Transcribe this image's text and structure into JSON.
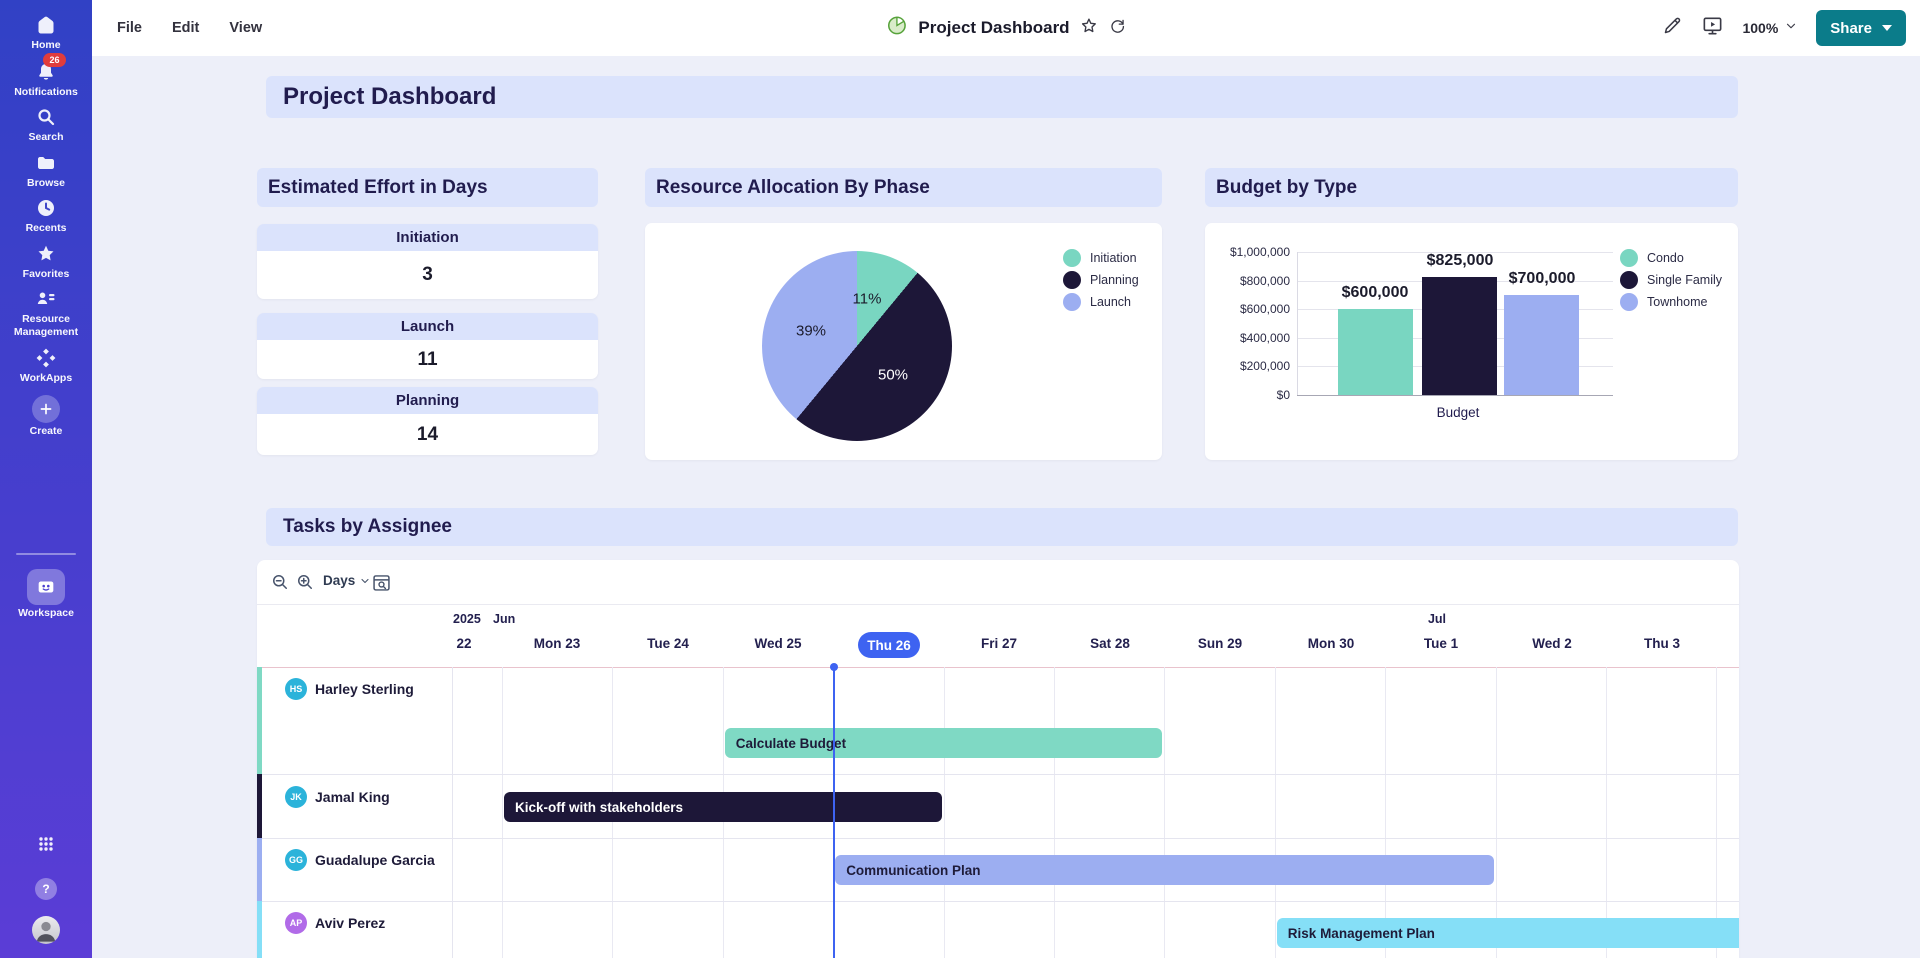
{
  "colors": {
    "accent_blue": "#3E63F1",
    "banner_bg": "#DBE3FC",
    "page_bg": "#EDEFF9",
    "text_dark": "#211C4E",
    "share_button_teal": "#0B7C8A",
    "sidebar_gradient_top": "#3141C5",
    "sidebar_gradient_bottom": "#5B3DD6",
    "notification_badge_red": "#E03C3C"
  },
  "sidebar": {
    "items": [
      {
        "label": "Home"
      },
      {
        "label": "Notifications",
        "badge": "26"
      },
      {
        "label": "Search"
      },
      {
        "label": "Browse"
      },
      {
        "label": "Recents"
      },
      {
        "label": "Favorites"
      },
      {
        "label": "Resource Management"
      },
      {
        "label": "WorkApps"
      }
    ],
    "create_label": "Create",
    "workspace_label": "Workspace"
  },
  "topbar": {
    "menus": [
      "File",
      "Edit",
      "View"
    ],
    "title": "Project Dashboard",
    "zoom_level": "100%",
    "share_label": "Share"
  },
  "page_title": "Project Dashboard",
  "effort_widget": {
    "title": "Estimated Effort in Days",
    "metrics": [
      {
        "label": "Initiation",
        "value": "3"
      },
      {
        "label": "Launch",
        "value": "11"
      },
      {
        "label": "Planning",
        "value": "14"
      }
    ]
  },
  "chart_data": [
    {
      "type": "pie",
      "title": "Resource Allocation By Phase",
      "labels": [
        "Initiation",
        "Planning",
        "Launch"
      ],
      "values": [
        11,
        50,
        39
      ],
      "slice_labels": [
        "11%",
        "50%",
        "39%"
      ],
      "colors": [
        "#79D6C1",
        "#1D1738",
        "#9CAEF1"
      ],
      "legend_position": "right",
      "start_angle_deg": 0,
      "direction": "clockwise"
    },
    {
      "type": "bar",
      "title": "Budget by Type",
      "categories": [
        "Condo",
        "Single Family",
        "Townhome"
      ],
      "values": [
        600000,
        825000,
        700000
      ],
      "value_labels": [
        "$600,000",
        "$825,000",
        "$700,000"
      ],
      "colors": [
        "#79D6C1",
        "#1D1738",
        "#9CAEF1"
      ],
      "xlabel": "Budget",
      "ylabel": "",
      "ylim": [
        0,
        1000000
      ],
      "ytick_labels": [
        "$0",
        "$200,000",
        "$400,000",
        "$600,000",
        "$800,000",
        "$1,000,000"
      ],
      "legend_position": "right",
      "grid": true
    }
  ],
  "gantt": {
    "title": "Tasks by Assignee",
    "toolbar": {
      "scale_label": "Days"
    },
    "timeline": {
      "year": "2025",
      "month_labels": [
        {
          "label": "Jun"
        },
        {
          "label": "Jul"
        }
      ],
      "days": [
        "22",
        "Mon 23",
        "Tue 24",
        "Wed 25",
        "Thu 26",
        "Fri 27",
        "Sat 28",
        "Sun 29",
        "Mon 30",
        "Tue 1",
        "Wed 2",
        "Thu 3"
      ],
      "today": "Thu 26",
      "today_index": 4
    },
    "rows": [
      {
        "name": "Harley Sterling",
        "initials": "HS",
        "avatar_color": "#2BB3DA",
        "stripe_color": "#7FD9C4",
        "task": {
          "label": "Calculate Budget",
          "color": "#7FD9C4",
          "text_color": "#1E1B39",
          "start_day": "Wed 25",
          "start_col": 3,
          "span_days": 4
        }
      },
      {
        "name": "Jamal King",
        "initials": "JK",
        "avatar_color": "#2BB3DA",
        "stripe_color": "#1D1738",
        "task": {
          "label": "Kick-off with stakeholders",
          "color": "#1D1738",
          "text_color": "#FFFFFF",
          "start_day": "Mon 23",
          "start_col": 1,
          "span_days": 4
        }
      },
      {
        "name": "Guadalupe Garcia",
        "initials": "GG",
        "avatar_color": "#2BB3DA",
        "stripe_color": "#9CAEF1",
        "task": {
          "label": "Communication Plan",
          "color": "#9CAEF1",
          "text_color": "#1E1B39",
          "start_day": "Thu 26",
          "start_col": 4,
          "span_days": 6
        }
      },
      {
        "name": "Aviv Perez",
        "initials": "AP",
        "avatar_color": "#B16BE8",
        "stripe_color": "#85DFF7",
        "task": {
          "label": "Risk Management Plan",
          "color": "#85DFF7",
          "text_color": "#1E1B39",
          "start_day": "Mon 30",
          "start_col": 8,
          "span_days": 5,
          "end_visible": false
        }
      }
    ]
  }
}
